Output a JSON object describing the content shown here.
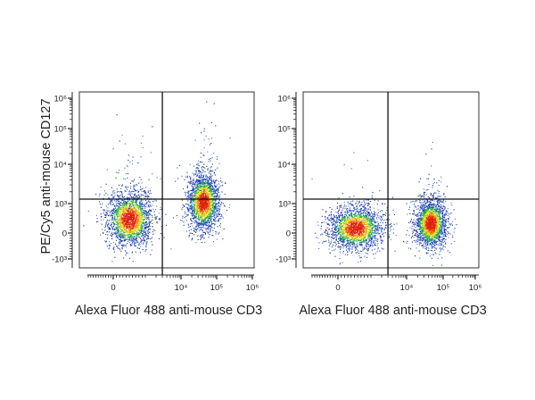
{
  "chart_data": [
    {
      "type": "scatter",
      "subtype": "flow-cytometry-density-dot-plot",
      "xlabel": "Alexa Fluor 488 anti-mouse CD3",
      "ylabel": "PE/Cy5 anti-mouse CD127",
      "x_scale": "biexponential",
      "y_scale": "biexponential",
      "x_ticks": [
        "0",
        "10⁴",
        "10⁵",
        "10⁶"
      ],
      "x_tick_values": [
        0,
        10000,
        100000,
        1000000
      ],
      "y_ticks": [
        "10⁶",
        "10⁵",
        "10⁴",
        "10³",
        "0",
        "-10³"
      ],
      "y_tick_values": [
        1000000,
        100000,
        10000,
        1000,
        0,
        -1000
      ],
      "gates": {
        "x": 3000,
        "y": 1300
      },
      "populations": [
        {
          "center": [
            500,
            480
          ],
          "count": 2200,
          "spread_decades": [
            0.32,
            0.38
          ],
          "tail_count": 90
        },
        {
          "center": [
            42000,
            1100
          ],
          "count": 2200,
          "spread_decades": [
            0.22,
            0.4
          ],
          "tail_count": 70
        }
      ],
      "density_colors": [
        "#1a2fa0",
        "#3b6fd8",
        "#29b34a",
        "#e8e020",
        "#f08a10",
        "#e02010"
      ]
    },
    {
      "type": "scatter",
      "subtype": "flow-cytometry-density-dot-plot",
      "xlabel": "Alexa Fluor 488 anti-mouse CD3",
      "ylabel": "",
      "x_scale": "biexponential",
      "y_scale": "biexponential",
      "x_ticks": [
        "0",
        "10⁴",
        "10⁵",
        "10⁶"
      ],
      "x_tick_values": [
        0,
        10000,
        100000,
        1000000
      ],
      "y_ticks": [
        "10⁶",
        "10⁵",
        "10⁴",
        "10³",
        "0",
        "-10³"
      ],
      "y_tick_values": [
        1000000,
        100000,
        10000,
        1000,
        0,
        -1000
      ],
      "gates": {
        "x": 3000,
        "y": 1300
      },
      "populations": [
        {
          "center": [
            530,
            180
          ],
          "count": 2200,
          "spread_decades": [
            0.38,
            0.3
          ],
          "tail_count": 25
        },
        {
          "center": [
            45000,
            330
          ],
          "count": 2200,
          "spread_decades": [
            0.22,
            0.34
          ],
          "tail_count": 45
        }
      ],
      "density_colors": [
        "#1a2fa0",
        "#3b6fd8",
        "#29b34a",
        "#e8e020",
        "#f08a10",
        "#e02010"
      ]
    }
  ]
}
